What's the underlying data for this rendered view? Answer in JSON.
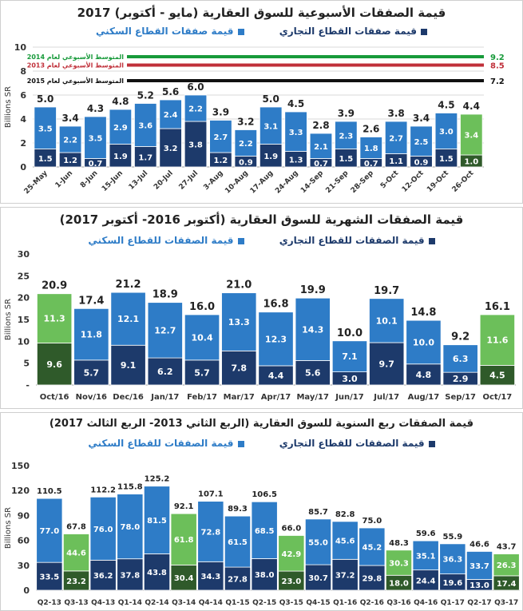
{
  "colors": {
    "residential": "#2e7cc7",
    "commercial": "#1d3a6b",
    "residential_highlight": "#6cbf5a",
    "commercial_highlight": "#2f5a2a",
    "value_label": "#222222",
    "inner_label": "#ffffff",
    "grid": "#d9d9d9",
    "avg_2014": "#179a3a",
    "avg_2013": "#c0303a",
    "avg_2015": "#111111",
    "legend_residential": "#2e7cc7",
    "legend_commercial": "#1d3a6b"
  },
  "legend": {
    "residential": "قيمة صفقات القطاع السكني",
    "commercial": "قيمة صفقات القطاع التجاري",
    "residential_2": "قيمة الصفقات للقطاع السكني",
    "commercial_2": "قيمة الصفقات للقطاع التجاري"
  },
  "chart_data": [
    {
      "type": "bar",
      "stacked": true,
      "title": "قيمة الصفقات الأسبوعية للسوق العقارية (مايو - أكتوبر) 2017",
      "ylabel": "Billions SR",
      "ylim": [
        0,
        10
      ],
      "yticks": [
        0,
        2,
        4,
        6,
        8,
        10
      ],
      "grid": true,
      "legend_position": "top",
      "categories": [
        "25-May",
        "1-Jun",
        "8-Jun",
        "15-Jun",
        "13-Jul",
        "20-Jul",
        "27-Jul",
        "3-Aug",
        "10-Aug",
        "17-Aug",
        "24-Aug",
        "14-Sep",
        "21-Sep",
        "28-Sep",
        "5-Oct",
        "12-Oct",
        "19-Oct",
        "26-Oct"
      ],
      "series": [
        {
          "name": "قيمة صفقات القطاع التجاري",
          "values": [
            1.5,
            1.2,
            0.7,
            1.9,
            1.7,
            3.2,
            3.8,
            1.2,
            0.9,
            1.9,
            1.3,
            0.7,
            1.5,
            0.7,
            1.1,
            0.9,
            1.5,
            1.0
          ]
        },
        {
          "name": "قيمة صفقات القطاع السكني",
          "values": [
            3.5,
            2.2,
            3.5,
            2.9,
            3.6,
            2.4,
            2.2,
            2.7,
            2.2,
            3.1,
            3.3,
            2.1,
            2.3,
            1.8,
            2.7,
            2.5,
            3.0,
            3.4
          ]
        }
      ],
      "inner_labels": {
        "bottom": [
          "1.5",
          "1.2",
          "0.7",
          "1.9",
          "1.7",
          "3.2",
          "3.8",
          "1.2",
          "0.9",
          "1.9",
          "1.3",
          "0.7",
          "1.5",
          "0.7",
          "1.1",
          "0.9",
          "1.5",
          "1.0"
        ],
        "top": [
          "3.5",
          "2.2",
          "3.5",
          "2.9",
          "3.6",
          "2.4",
          "2.2",
          "2.7",
          "2.2",
          "3.1",
          "3.3",
          "2.1",
          "2.3",
          "1.8",
          "2.7",
          "2.5",
          "3.0",
          "3.4"
        ]
      },
      "totals": [
        "5.0",
        "3.4",
        "4.3",
        "4.8",
        "5.2",
        "5.6",
        "6.0",
        "3.9",
        "3.2",
        "5.0",
        "4.5",
        "2.8",
        "3.9",
        "2.6",
        "3.8",
        "3.4",
        "4.5",
        "4.4"
      ],
      "highlight_index": 17,
      "reference_lines": [
        {
          "label": "المتوسط الأسبوعي لعام 2014",
          "value": 9.2,
          "value_text": "9.2",
          "color_key": "avg_2014"
        },
        {
          "label": "المتوسط الأسبوعي لعام 2013",
          "value": 8.5,
          "value_text": "8.5",
          "color_key": "avg_2013"
        },
        {
          "label": "المتوسط الأسبوعي لعام 2015",
          "value": 7.2,
          "value_text": "7.2",
          "color_key": "avg_2015"
        }
      ]
    },
    {
      "type": "bar",
      "stacked": true,
      "title": "قيمة الصفقات الشهرية للسوق العقارية (أكتوبر 2016- أكتوبر 2017)",
      "ylabel": "Billions SR",
      "ylim": [
        0,
        30
      ],
      "yticks": [
        0,
        5,
        10,
        15,
        20,
        25,
        30
      ],
      "yticklabels": [
        "-",
        "5",
        "10",
        "15",
        "20",
        "25",
        "30"
      ],
      "grid": false,
      "legend_position": "top",
      "categories": [
        "Oct/16",
        "Nov/16",
        "Dec/16",
        "Jan/17",
        "Feb/17",
        "Mar/17",
        "Apr/17",
        "May/17",
        "Jun/17",
        "Jul/17",
        "Aug/17",
        "Sep/17",
        "Oct/17"
      ],
      "series": [
        {
          "name": "قيمة الصفقات للقطاع التجاري",
          "values": [
            9.6,
            5.7,
            9.1,
            6.2,
            5.7,
            7.8,
            4.4,
            5.6,
            3.0,
            9.7,
            4.8,
            2.9,
            4.5
          ]
        },
        {
          "name": "قيمة الصفقات للقطاع السكني",
          "values": [
            11.3,
            11.8,
            12.1,
            12.7,
            10.4,
            13.3,
            12.3,
            14.3,
            7.1,
            10.1,
            10.0,
            6.3,
            11.6
          ]
        }
      ],
      "inner_labels": {
        "bottom": [
          "9.6",
          "5.7",
          "9.1",
          "6.2",
          "5.7",
          "7.8",
          "4.4",
          "5.6",
          "3.0",
          "9.7",
          "4.8",
          "2.9",
          "4.5"
        ],
        "top": [
          "11.3",
          "11.8",
          "12.1",
          "12.7",
          "10.4",
          "13.3",
          "12.3",
          "14.3",
          "7.1",
          "10.1",
          "10.0",
          "6.3",
          "11.6"
        ]
      },
      "totals": [
        "20.9",
        "17.4",
        "21.2",
        "18.9",
        "16.0",
        "21.0",
        "16.8",
        "19.9",
        "10.0",
        "19.7",
        "14.8",
        "9.2",
        "16.1"
      ],
      "highlight_indices": [
        0,
        12
      ]
    },
    {
      "type": "bar",
      "stacked": true,
      "title": "قيمة الصفقات ربع السنوية للسوق العقارية (الربع الثاني 2013- الربع الثالث 2017)",
      "ylabel": "Billions SR",
      "ylim": [
        0,
        150
      ],
      "yticks": [
        0,
        30,
        60,
        90,
        120,
        150
      ],
      "grid": false,
      "legend_position": "top",
      "categories": [
        "Q2-13",
        "Q3-13",
        "Q4-13",
        "Q1-14",
        "Q2-14",
        "Q3-14",
        "Q4-14",
        "Q1-15",
        "Q2-15",
        "Q3-15",
        "Q4-15",
        "Q1-16",
        "Q2-16",
        "Q3-16",
        "Q4-16",
        "Q1-17",
        "Q2-17",
        "Q3-17"
      ],
      "series": [
        {
          "name": "قيمة الصفقات للقطاع التجاري",
          "values": [
            33.5,
            23.2,
            36.2,
            37.8,
            43.8,
            30.4,
            34.3,
            27.8,
            38.0,
            23.0,
            30.7,
            37.2,
            29.8,
            18.0,
            24.4,
            19.6,
            13.0,
            17.4
          ]
        },
        {
          "name": "قيمة الصفقات للقطاع السكني",
          "values": [
            77.0,
            44.6,
            76.0,
            78.0,
            81.5,
            61.8,
            72.8,
            61.5,
            68.5,
            42.9,
            55.0,
            45.6,
            45.2,
            30.3,
            35.1,
            36.3,
            33.7,
            26.3
          ]
        }
      ],
      "inner_labels": {
        "bottom": [
          "33.5",
          "23.2",
          "36.2",
          "37.8",
          "43.8",
          "30.4",
          "34.3",
          "27.8",
          "38.0",
          "23.0",
          "30.7",
          "37.2",
          "29.8",
          "18.0",
          "24.4",
          "19.6",
          "13.0",
          "17.4"
        ],
        "top": [
          "77.0",
          "44.6",
          "76.0",
          "78.0",
          "81.5",
          "61.8",
          "72.8",
          "61.5",
          "68.5",
          "42.9",
          "55.0",
          "45.6",
          "45.2",
          "30.3",
          "35.1",
          "36.3",
          "33.7",
          "26.3"
        ]
      },
      "totals": [
        "110.5",
        "67.8",
        "112.2",
        "115.8",
        "125.2",
        "92.1",
        "107.1",
        "89.3",
        "106.5",
        "66.0",
        "85.7",
        "82.8",
        "75.0",
        "48.3",
        "59.6",
        "55.9",
        "46.6",
        "43.7"
      ],
      "highlight_indices": [
        1,
        5,
        9,
        13,
        17
      ]
    }
  ]
}
